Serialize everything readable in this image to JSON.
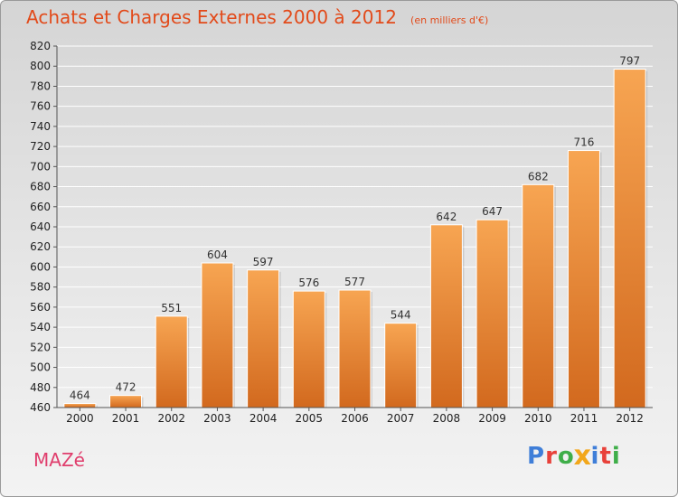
{
  "header": {
    "title": "Achats et Charges Externes 2000 à 2012",
    "unit": "(en milliers d'€)"
  },
  "commune": "MAZé",
  "logo": {
    "letters": [
      "P",
      "r",
      "o",
      "x",
      "i",
      "t",
      "i"
    ],
    "colors": [
      "#3f7ed8",
      "#e8413a",
      "#3fae49",
      "#f2a71b",
      "#3f7ed8",
      "#e8413a",
      "#3fae49"
    ]
  },
  "colors": {
    "bar_top": "#f7a552",
    "bar_bottom": "#d2691e",
    "title": "#e24a1a",
    "commune": "#e03e6d"
  },
  "chart_data": {
    "type": "bar",
    "categories": [
      "2000",
      "2001",
      "2002",
      "2003",
      "2004",
      "2005",
      "2006",
      "2007",
      "2008",
      "2009",
      "2010",
      "2011",
      "2012"
    ],
    "values": [
      464,
      472,
      551,
      604,
      597,
      576,
      577,
      544,
      642,
      647,
      682,
      716,
      797
    ],
    "title": "Achats et Charges Externes 2000 à 2012",
    "ylim": [
      460,
      820
    ],
    "yticks": [
      460,
      480,
      500,
      520,
      540,
      560,
      580,
      600,
      620,
      640,
      660,
      680,
      700,
      720,
      740,
      760,
      780,
      800,
      820
    ],
    "grid": true,
    "legend": "none"
  }
}
